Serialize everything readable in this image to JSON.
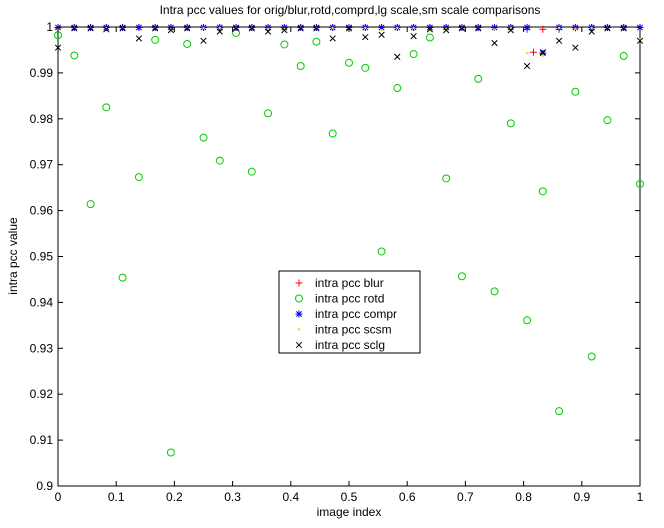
{
  "chart_data": {
    "type": "scatter",
    "title": "Intra pcc values for orig/blur,rotd,comprd,lg scale,sm scale comparisons",
    "xlabel": "image index",
    "ylabel": "intra pcc value",
    "xlim": [
      0,
      1
    ],
    "ylim": [
      0.9,
      1
    ],
    "xticks": [
      "0",
      "0.1",
      "0.2",
      "0.3",
      "0.4",
      "0.5",
      "0.6",
      "0.7",
      "0.8",
      "0.9",
      "1"
    ],
    "yticks": [
      "0.9",
      "0.91",
      "0.92",
      "0.93",
      "0.94",
      "0.95",
      "0.96",
      "0.97",
      "0.98",
      "0.99",
      "1"
    ],
    "grid": false,
    "legend_position": "center",
    "series": [
      {
        "name": "intra pcc blur",
        "marker": "plus",
        "color": "#ff0000",
        "x": [
          0,
          0.028,
          0.056,
          0.083,
          0.111,
          0.139,
          0.167,
          0.194,
          0.222,
          0.25,
          0.278,
          0.306,
          0.333,
          0.361,
          0.389,
          0.417,
          0.444,
          0.472,
          0.5,
          0.528,
          0.556,
          0.583,
          0.611,
          0.639,
          0.667,
          0.694,
          0.722,
          0.75,
          0.778,
          0.806,
          0.817,
          0.833,
          0.861,
          0.889,
          0.917,
          0.944,
          0.972,
          1.0
        ],
        "y": [
          0.9998,
          0.9999,
          0.9999,
          0.9999,
          0.9999,
          0.9999,
          0.9999,
          0.9999,
          0.9999,
          0.9999,
          0.9999,
          0.9999,
          0.9999,
          0.9999,
          0.9999,
          0.9999,
          0.9999,
          0.9999,
          0.9999,
          0.9999,
          0.9999,
          0.9999,
          0.9999,
          0.9999,
          0.9999,
          0.9999,
          0.9999,
          0.9999,
          0.9998,
          0.9995,
          0.9945,
          0.9995,
          0.9995,
          0.9998,
          0.9999,
          0.9999,
          0.9999,
          0.9999
        ]
      },
      {
        "name": "intra pcc rotd",
        "marker": "circle",
        "color": "#00cc00",
        "x": [
          0.0,
          0.028,
          0.056,
          0.083,
          0.111,
          0.139,
          0.167,
          0.194,
          0.222,
          0.25,
          0.278,
          0.306,
          0.333,
          0.361,
          0.389,
          0.417,
          0.444,
          0.472,
          0.5,
          0.528,
          0.556,
          0.583,
          0.611,
          0.639,
          0.667,
          0.694,
          0.722,
          0.75,
          0.778,
          0.806,
          0.833,
          0.861,
          0.889,
          0.917,
          0.944,
          0.972,
          1.0
        ],
        "y": [
          0.9982,
          0.9938,
          0.9614,
          0.9825,
          0.9454,
          0.9673,
          0.9972,
          0.9073,
          0.9963,
          0.9759,
          0.9709,
          0.9987,
          0.9685,
          0.9812,
          0.9962,
          0.9915,
          0.9968,
          0.9768,
          0.9922,
          0.9911,
          0.9511,
          0.9867,
          0.9941,
          0.9977,
          0.967,
          0.9457,
          0.9887,
          0.9424,
          0.979,
          0.9361,
          0.9642,
          0.9163,
          0.9859,
          0.9282,
          0.9797,
          0.9937,
          0.9658
        ]
      },
      {
        "name": "intra pcc compr",
        "marker": "asterisk",
        "color": "#0000ff",
        "x": [
          0.0,
          0.028,
          0.056,
          0.083,
          0.111,
          0.139,
          0.167,
          0.194,
          0.222,
          0.25,
          0.278,
          0.306,
          0.333,
          0.361,
          0.389,
          0.417,
          0.444,
          0.472,
          0.5,
          0.528,
          0.556,
          0.583,
          0.611,
          0.639,
          0.667,
          0.694,
          0.722,
          0.75,
          0.778,
          0.806,
          0.833,
          0.861,
          0.889,
          0.917,
          0.944,
          0.972,
          1.0
        ],
        "y": [
          0.9999,
          0.9999,
          0.9999,
          0.9999,
          0.9999,
          0.9999,
          0.9999,
          0.9999,
          0.9999,
          0.9999,
          0.9999,
          0.9999,
          0.9999,
          0.9999,
          0.9999,
          0.9999,
          0.9999,
          0.9999,
          0.9999,
          0.9999,
          0.9999,
          0.9999,
          0.9999,
          0.9999,
          0.9999,
          0.9999,
          0.9999,
          0.9999,
          0.9999,
          0.9999,
          0.9943,
          0.9999,
          0.9999,
          0.9999,
          0.9999,
          0.9999,
          0.9999
        ]
      },
      {
        "name": "intra pcc scsm",
        "marker": "dot",
        "color": "#ffd700",
        "x": [
          0.0,
          0.028,
          0.056,
          0.083,
          0.111,
          0.139,
          0.167,
          0.194,
          0.222,
          0.25,
          0.278,
          0.306,
          0.333,
          0.361,
          0.389,
          0.417,
          0.444,
          0.472,
          0.5,
          0.528,
          0.556,
          0.583,
          0.611,
          0.639,
          0.667,
          0.694,
          0.722,
          0.75,
          0.778,
          0.806,
          0.833,
          0.861,
          0.889,
          0.917,
          0.944,
          0.972,
          1.0
        ],
        "y": [
          0.9995,
          0.9998,
          0.9998,
          0.9997,
          0.9998,
          0.9975,
          0.9998,
          0.9995,
          0.9998,
          0.9998,
          0.9998,
          0.9998,
          0.9998,
          0.9996,
          0.9996,
          0.9998,
          0.9998,
          0.9998,
          0.9998,
          0.9998,
          0.9993,
          0.9998,
          0.9998,
          0.9993,
          0.9996,
          0.9998,
          0.9998,
          0.9995,
          0.9998,
          0.9943,
          0.9938,
          0.9998,
          0.9996,
          0.9998,
          0.9998,
          0.9998,
          0.9973
        ]
      },
      {
        "name": "intra pcc sclg",
        "marker": "x",
        "color": "#000000",
        "x": [
          0.0,
          0.028,
          0.056,
          0.083,
          0.111,
          0.139,
          0.167,
          0.194,
          0.222,
          0.25,
          0.278,
          0.306,
          0.333,
          0.361,
          0.389,
          0.417,
          0.444,
          0.472,
          0.5,
          0.528,
          0.556,
          0.583,
          0.611,
          0.639,
          0.667,
          0.694,
          0.722,
          0.75,
          0.778,
          0.806,
          0.833,
          0.861,
          0.889,
          0.917,
          0.944,
          0.972,
          1.0
        ],
        "y": [
          0.9955,
          0.9997,
          0.9997,
          0.9995,
          0.9997,
          0.9975,
          0.9997,
          0.9993,
          0.9997,
          0.997,
          0.999,
          0.9997,
          0.9997,
          0.999,
          0.9993,
          0.9997,
          0.9997,
          0.9975,
          0.9997,
          0.9978,
          0.9983,
          0.9935,
          0.998,
          0.9995,
          0.9993,
          0.9997,
          0.9997,
          0.9965,
          0.9993,
          0.9915,
          0.9945,
          0.997,
          0.9955,
          0.999,
          0.9997,
          0.9997,
          0.997
        ]
      }
    ]
  }
}
